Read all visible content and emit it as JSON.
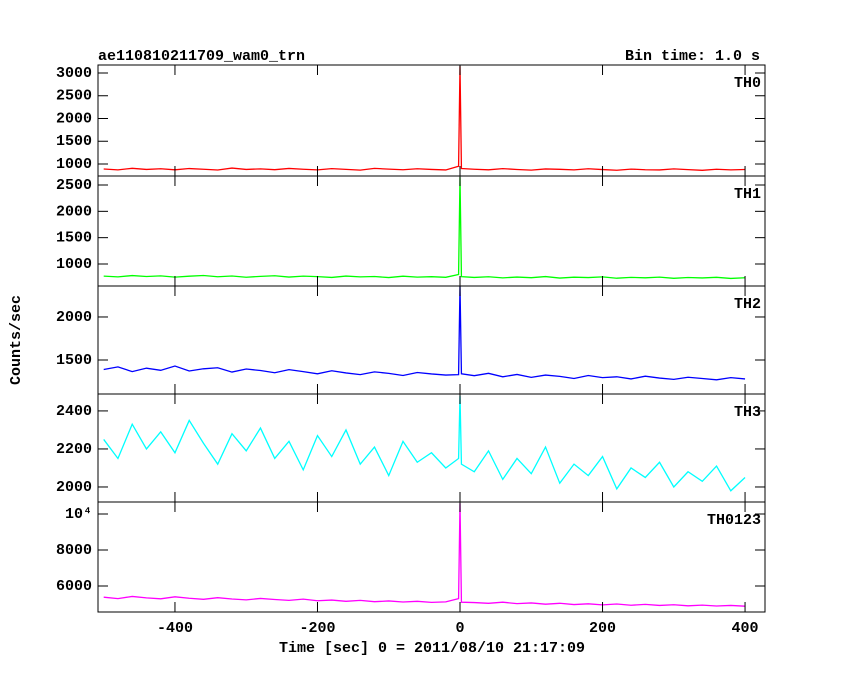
{
  "title": "ae110810211709_wam0_trn",
  "subtitle": "Bin time: 1.0 s",
  "ylabel": "Counts/sec",
  "xlabel": "Time [sec] 0 = 2011/08/10 21:17:09",
  "chart_data": [
    {
      "type": "line",
      "xlim": [
        -508,
        428
      ],
      "ylim": [
        736,
        3176
      ],
      "yticks": [
        1000,
        1500,
        2000,
        2500,
        3000
      ],
      "x": [
        -500,
        -480,
        -460,
        -440,
        -420,
        -400,
        -380,
        -360,
        -340,
        -320,
        -300,
        -280,
        -260,
        -240,
        -220,
        -200,
        -180,
        -160,
        -140,
        -120,
        -100,
        -80,
        -60,
        -40,
        -20,
        -2,
        0,
        2,
        20,
        40,
        60,
        80,
        100,
        120,
        140,
        160,
        180,
        200,
        220,
        240,
        260,
        280,
        300,
        320,
        340,
        360,
        380,
        400
      ],
      "xticks": [
        -400,
        -200,
        0,
        200,
        400
      ],
      "series": [
        {
          "name": "TH0",
          "color": "#ff0000",
          "values": [
            890,
            870,
            905,
            880,
            895,
            872,
            900,
            885,
            868,
            910,
            880,
            893,
            875,
            902,
            884,
            870,
            898,
            881,
            865,
            903,
            887,
            874,
            896,
            880,
            869,
            950,
            3150,
            900,
            885,
            872,
            898,
            879,
            866,
            891,
            883,
            870,
            895,
            878,
            862,
            888,
            874,
            869,
            892,
            876,
            861,
            884,
            870,
            879
          ]
        }
      ]
    },
    {
      "type": "line",
      "xlim": [
        -508,
        428
      ],
      "ylim": [
        582,
        2671
      ],
      "yticks": [
        1000,
        1500,
        2000,
        2500
      ],
      "x": [
        -500,
        -480,
        -460,
        -440,
        -420,
        -400,
        -380,
        -360,
        -340,
        -320,
        -300,
        -280,
        -260,
        -240,
        -220,
        -200,
        -180,
        -160,
        -140,
        -120,
        -100,
        -80,
        -60,
        -40,
        -20,
        -2,
        0,
        2,
        20,
        40,
        60,
        80,
        100,
        120,
        140,
        160,
        180,
        200,
        220,
        240,
        260,
        280,
        300,
        320,
        340,
        360,
        380,
        400
      ],
      "xticks": [
        -400,
        -200,
        0,
        200,
        400
      ],
      "series": [
        {
          "name": "TH1",
          "color": "#00ff00",
          "values": [
            770,
            755,
            780,
            762,
            774,
            750,
            768,
            781,
            758,
            772,
            748,
            765,
            776,
            752,
            769,
            760,
            745,
            771,
            756,
            763,
            742,
            768,
            751,
            759,
            747,
            800,
            2650,
            760,
            745,
            758,
            737,
            752,
            740,
            761,
            733,
            749,
            742,
            755,
            730,
            746,
            738,
            751,
            728,
            744,
            735,
            747,
            726,
            739
          ]
        }
      ]
    },
    {
      "type": "line",
      "xlim": [
        -508,
        428
      ],
      "ylim": [
        1105,
        2360
      ],
      "yticks": [
        1500,
        2000
      ],
      "x": [
        -500,
        -480,
        -460,
        -440,
        -420,
        -400,
        -380,
        -360,
        -340,
        -320,
        -300,
        -280,
        -260,
        -240,
        -220,
        -200,
        -180,
        -160,
        -140,
        -120,
        -100,
        -80,
        -60,
        -40,
        -20,
        -2,
        0,
        2,
        20,
        40,
        60,
        80,
        100,
        120,
        140,
        160,
        180,
        200,
        220,
        240,
        260,
        280,
        300,
        320,
        340,
        360,
        380,
        400
      ],
      "xticks": [
        -400,
        -200,
        0,
        200,
        400
      ],
      "series": [
        {
          "name": "TH2",
          "color": "#0000ff",
          "values": [
            1390,
            1420,
            1365,
            1405,
            1380,
            1430,
            1372,
            1398,
            1410,
            1360,
            1395,
            1378,
            1352,
            1388,
            1365,
            1340,
            1375,
            1350,
            1330,
            1362,
            1345,
            1320,
            1355,
            1338,
            1325,
            1330,
            2360,
            1340,
            1318,
            1345,
            1305,
            1332,
            1298,
            1325,
            1310,
            1285,
            1320,
            1295,
            1305,
            1280,
            1312,
            1290,
            1275,
            1300,
            1285,
            1270,
            1295,
            1280
          ]
        }
      ]
    },
    {
      "type": "line",
      "xlim": [
        -508,
        428
      ],
      "ylim": [
        1921,
        2489
      ],
      "yticks": [
        2000,
        2200,
        2400
      ],
      "x": [
        -500,
        -480,
        -460,
        -440,
        -420,
        -400,
        -380,
        -360,
        -340,
        -320,
        -300,
        -280,
        -260,
        -240,
        -220,
        -200,
        -180,
        -160,
        -140,
        -120,
        -100,
        -80,
        -60,
        -40,
        -20,
        -2,
        0,
        2,
        20,
        40,
        60,
        80,
        100,
        120,
        140,
        160,
        180,
        200,
        220,
        240,
        260,
        280,
        300,
        320,
        340,
        360,
        380,
        400
      ],
      "xticks": [
        -400,
        -200,
        0,
        200,
        400
      ],
      "series": [
        {
          "name": "TH3",
          "color": "#00ffff",
          "values": [
            2250,
            2150,
            2330,
            2200,
            2290,
            2180,
            2350,
            2230,
            2120,
            2280,
            2190,
            2310,
            2150,
            2240,
            2090,
            2270,
            2160,
            2300,
            2120,
            2210,
            2060,
            2240,
            2130,
            2180,
            2100,
            2150,
            2480,
            2120,
            2080,
            2190,
            2040,
            2150,
            2070,
            2210,
            2020,
            2120,
            2060,
            2160,
            1990,
            2100,
            2050,
            2130,
            2000,
            2080,
            2030,
            2110,
            1980,
            2050
          ]
        }
      ]
    },
    {
      "type": "line",
      "xlim": [
        -508,
        428
      ],
      "ylim": [
        4556,
        10667
      ],
      "yticks": [
        6000,
        8000,
        {
          "value": 10000,
          "label": "10⁴"
        }
      ],
      "x": [
        -500,
        -480,
        -460,
        -440,
        -420,
        -400,
        -380,
        -360,
        -340,
        -320,
        -300,
        -280,
        -260,
        -240,
        -220,
        -200,
        -180,
        -160,
        -140,
        -120,
        -100,
        -80,
        -60,
        -40,
        -20,
        -2,
        0,
        2,
        20,
        40,
        60,
        80,
        100,
        120,
        140,
        160,
        180,
        200,
        220,
        240,
        260,
        280,
        300,
        320,
        340,
        360,
        380,
        400
      ],
      "xticks": [
        -400,
        -200,
        0,
        200,
        400
      ],
      "series": [
        {
          "name": "TH0123",
          "color": "#ff00ff",
          "values": [
            5380,
            5300,
            5420,
            5340,
            5290,
            5400,
            5320,
            5260,
            5350,
            5280,
            5230,
            5310,
            5250,
            5200,
            5270,
            5180,
            5220,
            5150,
            5200,
            5130,
            5170,
            5110,
            5150,
            5090,
            5120,
            5300,
            10600,
            5100,
            5080,
            5040,
            5100,
            5020,
            5060,
            4990,
            5040,
            4970,
            5010,
            4950,
            5000,
            4930,
            4980,
            4920,
            4960,
            4900,
            4940,
            4890,
            4920,
            4880
          ]
        }
      ]
    }
  ]
}
